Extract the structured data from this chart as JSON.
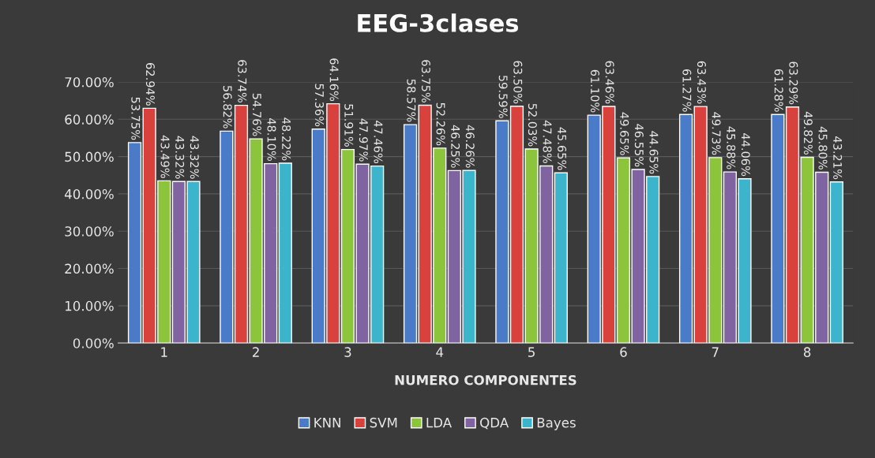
{
  "chart_data": {
    "type": "bar",
    "title": "EEG-3clases",
    "xlabel": "NUMERO COMPONENTES",
    "categories": [
      "1",
      "2",
      "3",
      "4",
      "5",
      "6",
      "7",
      "8"
    ],
    "series": [
      {
        "name": "KNN",
        "color": "#4a7bc8",
        "values": [
          53.75,
          56.82,
          57.36,
          58.57,
          59.59,
          61.1,
          61.27,
          61.28
        ],
        "value_labels": [
          "53.75%",
          "56.82%",
          "57.36%",
          "58.57%",
          "59.59%",
          "61.10%",
          "61.27%",
          "61.28%"
        ]
      },
      {
        "name": "SVM",
        "color": "#d9423c",
        "values": [
          62.94,
          63.74,
          64.16,
          63.75,
          63.5,
          63.46,
          63.43,
          63.29
        ],
        "value_labels": [
          "62.94%",
          "63.74%",
          "64.16%",
          "63.75%",
          "63.50%",
          "63.46%",
          "63.43%",
          "63.29%"
        ]
      },
      {
        "name": "LDA",
        "color": "#8cc43c",
        "values": [
          43.49,
          54.76,
          51.91,
          52.26,
          52.03,
          49.65,
          49.73,
          49.82
        ],
        "value_labels": [
          "43.49%",
          "54.76%",
          "51.91%",
          "52.26%",
          "52.03%",
          "49.65%",
          "49.73%",
          "49.82%"
        ]
      },
      {
        "name": "QDA",
        "color": "#8064a2",
        "values": [
          43.32,
          48.1,
          47.97,
          46.25,
          47.48,
          46.55,
          45.88,
          45.8
        ],
        "value_labels": [
          "43.32%",
          "48.10%",
          "47.97%",
          "46.25%",
          "47.48%",
          "46.55%",
          "45.88%",
          "45.80%"
        ]
      },
      {
        "name": "Bayes",
        "color": "#3cb4cc",
        "values": [
          43.32,
          48.22,
          47.46,
          46.26,
          45.65,
          44.65,
          44.06,
          43.21
        ],
        "value_labels": [
          "43.32%",
          "48.22%",
          "47.46%",
          "46.26%",
          "45.65%",
          "44.65%",
          "44.06%",
          "43.21%"
        ]
      }
    ],
    "ylim": [
      0,
      70
    ],
    "yticks": [
      {
        "value": 0,
        "label": "0.00%"
      },
      {
        "value": 10,
        "label": "10.00%"
      },
      {
        "value": 20,
        "label": "20.00%"
      },
      {
        "value": 30,
        "label": "30.00%"
      },
      {
        "value": 40,
        "label": "40.00%"
      },
      {
        "value": 50,
        "label": "50.00%"
      },
      {
        "value": 60,
        "label": "60.00%"
      },
      {
        "value": 70,
        "label": "70.00%"
      }
    ],
    "grid": "y",
    "legend": "bottom"
  }
}
